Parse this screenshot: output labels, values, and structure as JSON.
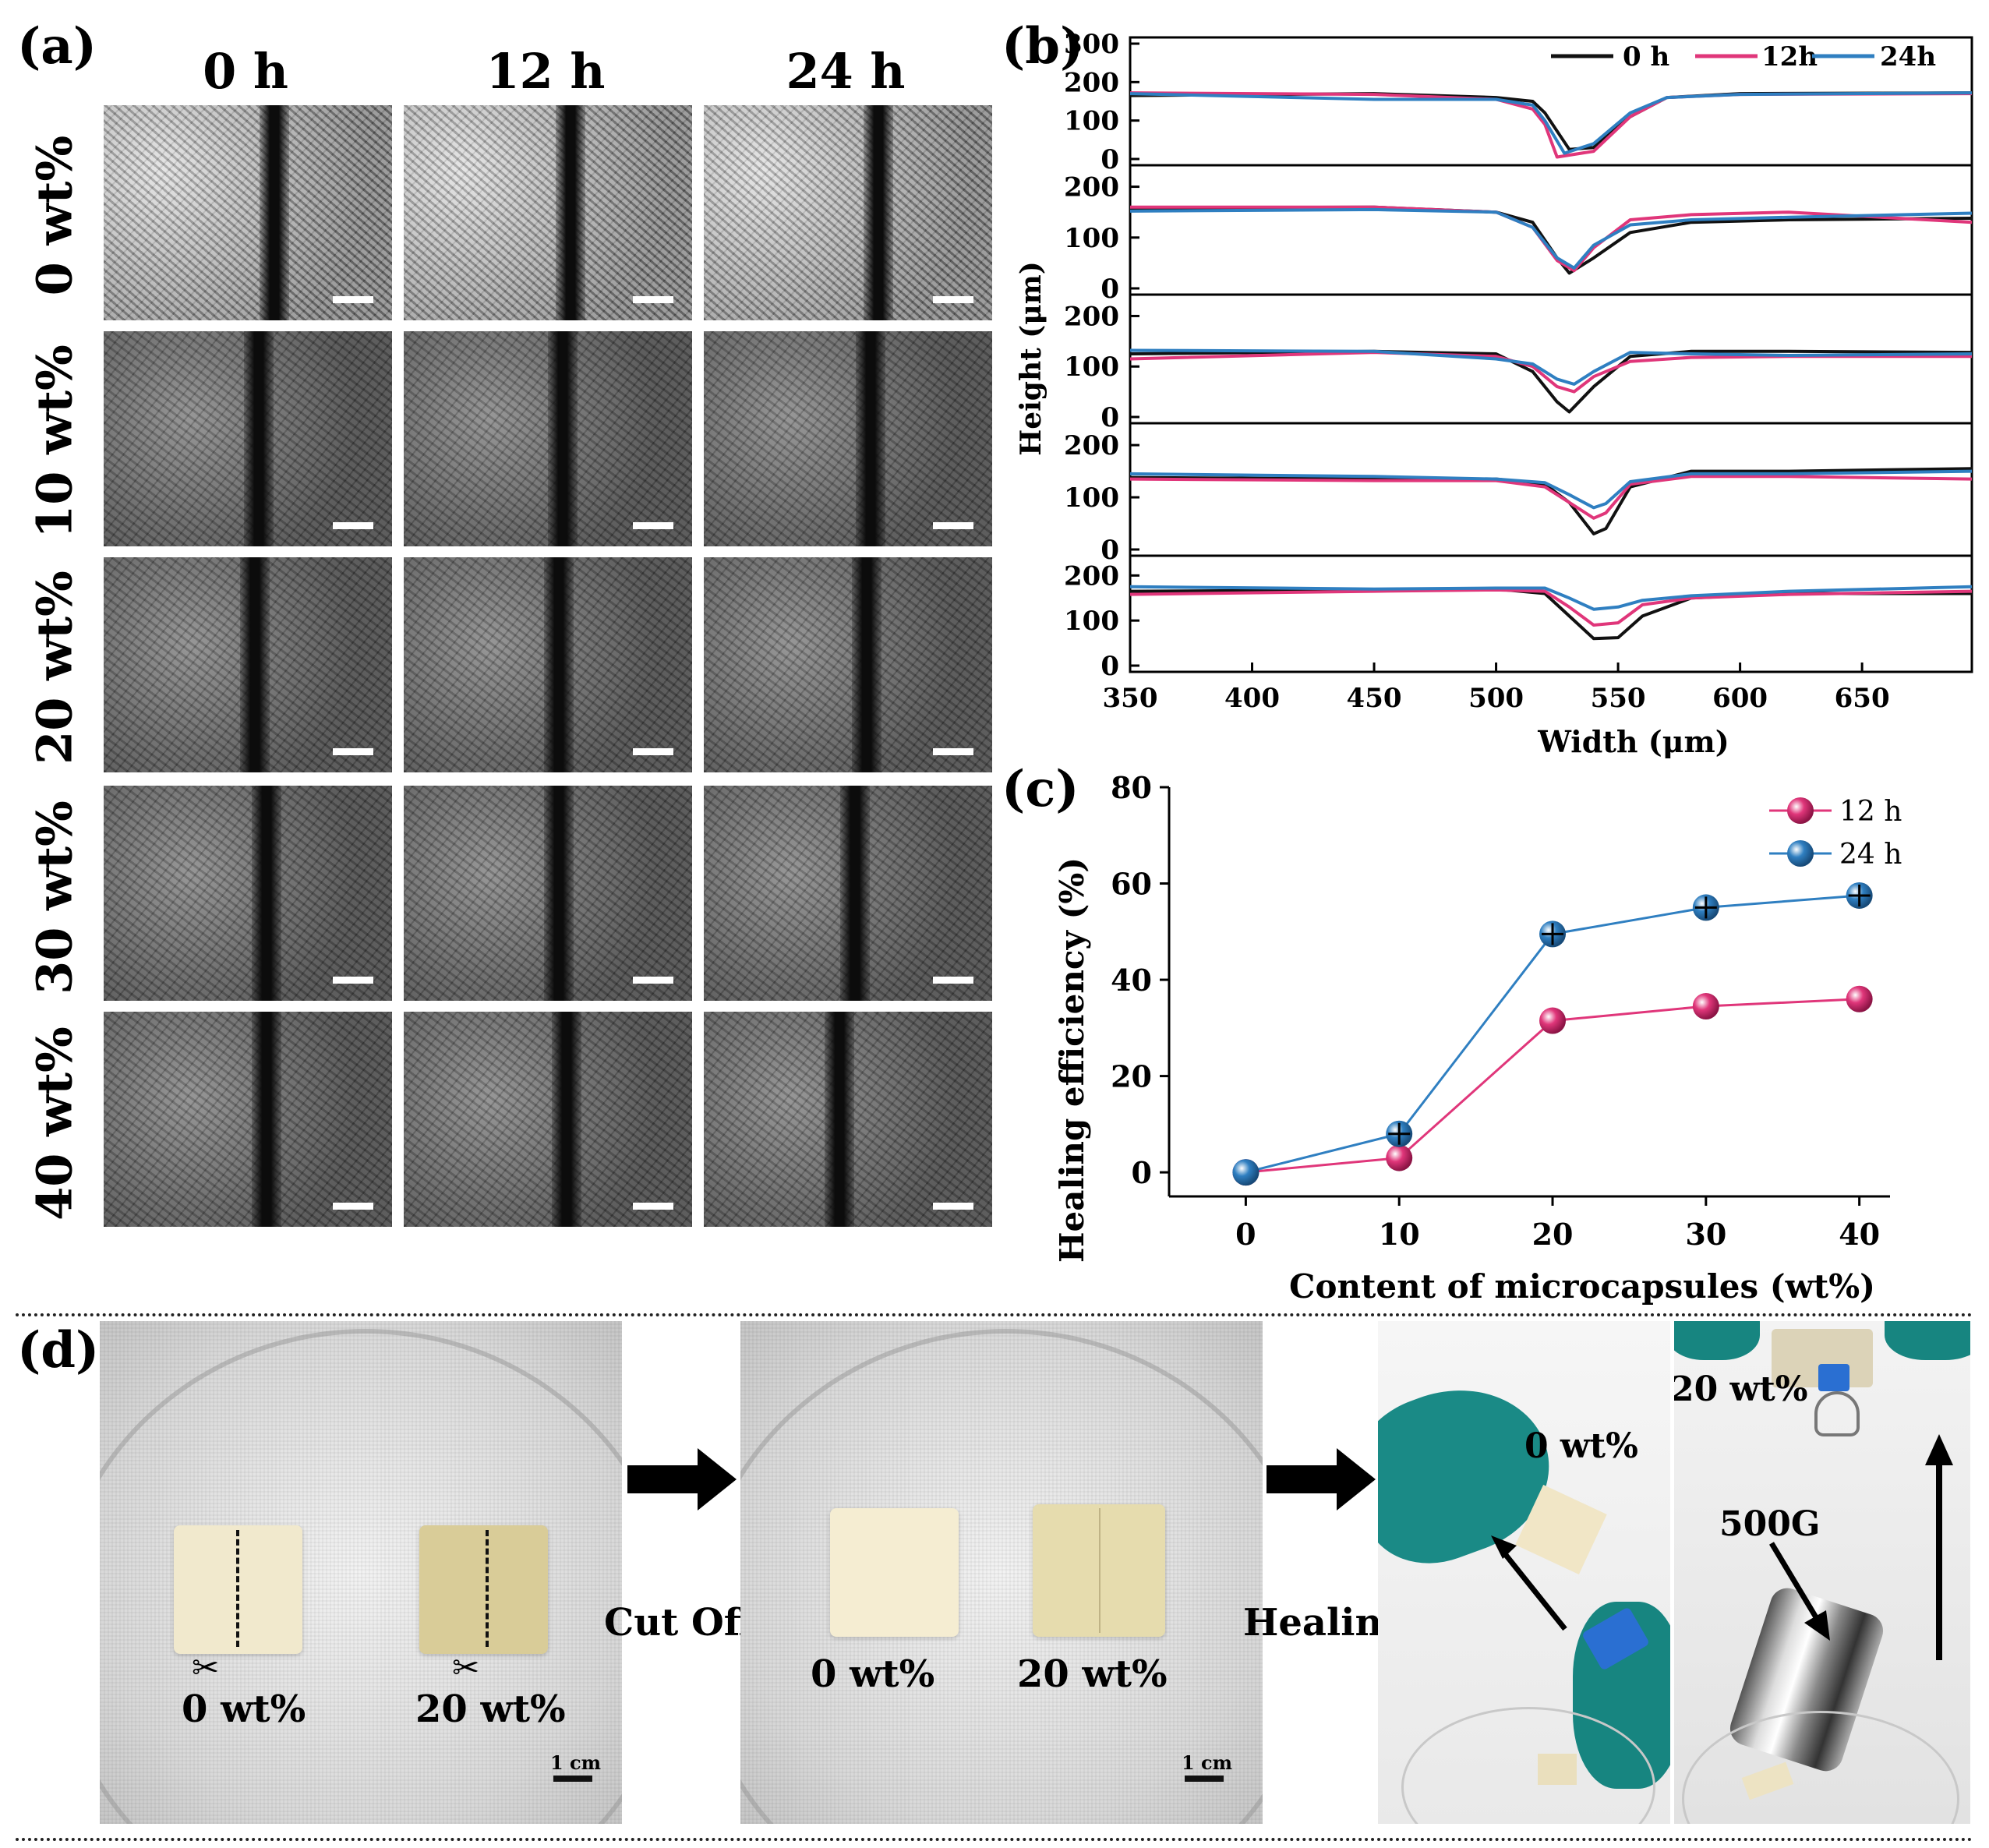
{
  "panel_a": {
    "label": "(a)",
    "columns": [
      "0 h",
      "12 h",
      "24 h"
    ],
    "rows": [
      "0 wt%",
      "10 wt%",
      "20 wt%",
      "30 wt%",
      "40 wt%"
    ]
  },
  "panel_b": {
    "label": "(b)",
    "ylabel": "Height (μm)",
    "xlabel": "Width (μm)",
    "legend": [
      "0 h",
      "12h",
      "24h"
    ],
    "x_ticks": [
      "350",
      "400",
      "450",
      "500",
      "550",
      "600",
      "650"
    ],
    "y_ticks_top": [
      "300",
      "200",
      "100",
      "0"
    ],
    "y_ticks_mid": [
      "200",
      "100",
      "0"
    ],
    "y_ticks_bottom": [
      "200",
      "100",
      "0"
    ]
  },
  "panel_c": {
    "label": "(c)",
    "ylabel": "Healing efficiency (%)",
    "xlabel": "Content of microcapsules (wt%)"
  },
  "panel_d": {
    "label": "(d)",
    "left_labels": [
      "0 wt%",
      "20 wt%"
    ],
    "mid_labels": [
      "0 wt%",
      "20 wt%"
    ],
    "arrow1": "Cut Off",
    "arrow2": "Healing",
    "scale": "1 cm",
    "hand_label": "0 wt%",
    "hang_label": "20 wt%",
    "weight_label": "500G"
  },
  "colors": {
    "black": "#111111",
    "pink": "#e0367a",
    "blue": "#2f7fc1"
  },
  "chart_data": [
    {
      "type": "line",
      "title": "",
      "xlabel": "Width (μm)",
      "ylabel": "Height (μm)",
      "xlim": [
        350,
        695
      ],
      "stacked_panels": [
        {
          "ylim": [
            0,
            300
          ],
          "series": [
            {
              "name": "0 h",
              "x": [
                350,
                450,
                500,
                515,
                520,
                530,
                540,
                555,
                570,
                600,
                695
              ],
              "values": [
                165,
                170,
                160,
                150,
                120,
                25,
                30,
                110,
                160,
                170,
                172
              ]
            },
            {
              "name": "12h",
              "x": [
                350,
                450,
                500,
                515,
                520,
                525,
                540,
                555,
                570,
                600,
                695
              ],
              "values": [
                172,
                168,
                155,
                130,
                90,
                5,
                20,
                110,
                160,
                168,
                170
              ]
            },
            {
              "name": "24h",
              "x": [
                350,
                450,
                500,
                515,
                520,
                528,
                540,
                555,
                570,
                600,
                695
              ],
              "values": [
                170,
                155,
                155,
                140,
                100,
                15,
                40,
                120,
                160,
                168,
                172
              ]
            }
          ]
        },
        {
          "ylim": [
            0,
            250
          ],
          "series": [
            {
              "name": "0 h",
              "x": [
                350,
                450,
                500,
                515,
                525,
                530,
                540,
                555,
                580,
                620,
                695
              ],
              "values": [
                158,
                160,
                150,
                130,
                60,
                30,
                60,
                110,
                130,
                135,
                138
              ]
            },
            {
              "name": "12h",
              "x": [
                350,
                450,
                500,
                515,
                525,
                532,
                540,
                555,
                580,
                620,
                695
              ],
              "values": [
                160,
                160,
                150,
                120,
                55,
                35,
                80,
                135,
                145,
                150,
                130
              ]
            },
            {
              "name": "24h",
              "x": [
                350,
                450,
                500,
                515,
                525,
                532,
                540,
                555,
                580,
                620,
                695
              ],
              "values": [
                152,
                155,
                150,
                120,
                60,
                40,
                85,
                125,
                135,
                140,
                148
              ]
            }
          ]
        },
        {
          "ylim": [
            0,
            250
          ],
          "series": [
            {
              "name": "0 h",
              "x": [
                350,
                450,
                500,
                515,
                525,
                530,
                540,
                555,
                580,
                620,
                695
              ],
              "values": [
                125,
                130,
                125,
                90,
                30,
                10,
                60,
                120,
                130,
                130,
                128
              ]
            },
            {
              "name": "12h",
              "x": [
                350,
                450,
                500,
                515,
                525,
                532,
                540,
                555,
                580,
                620,
                695
              ],
              "values": [
                115,
                128,
                120,
                100,
                60,
                50,
                80,
                110,
                118,
                120,
                120
              ]
            },
            {
              "name": "24h",
              "x": [
                350,
                450,
                500,
                515,
                525,
                532,
                540,
                555,
                580,
                620,
                695
              ],
              "values": [
                132,
                130,
                115,
                105,
                75,
                65,
                90,
                128,
                125,
                122,
                125
              ]
            }
          ]
        },
        {
          "ylim": [
            0,
            250
          ],
          "series": [
            {
              "name": "0 h",
              "x": [
                350,
                450,
                500,
                520,
                530,
                540,
                545,
                555,
                580,
                620,
                695
              ],
              "values": [
                138,
                135,
                135,
                125,
                90,
                30,
                40,
                120,
                150,
                150,
                155
              ]
            },
            {
              "name": "12h",
              "x": [
                350,
                450,
                500,
                520,
                530,
                540,
                545,
                555,
                580,
                620,
                695
              ],
              "values": [
                135,
                132,
                132,
                120,
                90,
                60,
                70,
                125,
                140,
                140,
                135
              ]
            },
            {
              "name": "24h",
              "x": [
                350,
                450,
                500,
                520,
                530,
                540,
                545,
                555,
                580,
                620,
                695
              ],
              "values": [
                145,
                140,
                135,
                128,
                105,
                80,
                88,
                130,
                145,
                145,
                150
              ]
            }
          ]
        },
        {
          "ylim": [
            0,
            220
          ],
          "series": [
            {
              "name": "0 h",
              "x": [
                350,
                450,
                500,
                520,
                530,
                540,
                550,
                560,
                580,
                620,
                695
              ],
              "values": [
                165,
                168,
                170,
                160,
                110,
                60,
                62,
                110,
                150,
                160,
                160
              ]
            },
            {
              "name": "12h",
              "x": [
                350,
                450,
                500,
                520,
                530,
                540,
                550,
                560,
                580,
                620,
                695
              ],
              "values": [
                158,
                165,
                168,
                165,
                130,
                90,
                95,
                135,
                150,
                158,
                165
              ]
            },
            {
              "name": "24h",
              "x": [
                350,
                450,
                500,
                520,
                530,
                540,
                550,
                560,
                580,
                620,
                695
              ],
              "values": [
                175,
                170,
                172,
                172,
                150,
                125,
                130,
                145,
                155,
                165,
                175
              ]
            }
          ]
        }
      ],
      "legend": [
        "0 h",
        "12h",
        "24h"
      ]
    },
    {
      "type": "scatter",
      "title": "",
      "xlabel": "Content of microcapsules (wt%)",
      "ylabel": "Healing efficiency (%)",
      "categories": [
        "0",
        "10",
        "20",
        "30",
        "40"
      ],
      "x": [
        0,
        10,
        20,
        30,
        40
      ],
      "xlim": [
        -5,
        42
      ],
      "ylim": [
        -5,
        80
      ],
      "y_ticks": [
        "0",
        "20",
        "40",
        "60",
        "80"
      ],
      "series": [
        {
          "name": "12 h",
          "values": [
            0,
            3,
            31.5,
            34.5,
            36
          ]
        },
        {
          "name": "24 h",
          "values": [
            0,
            8,
            49.5,
            55,
            57.5
          ]
        }
      ],
      "legend": [
        "12 h",
        "24 h"
      ]
    }
  ]
}
